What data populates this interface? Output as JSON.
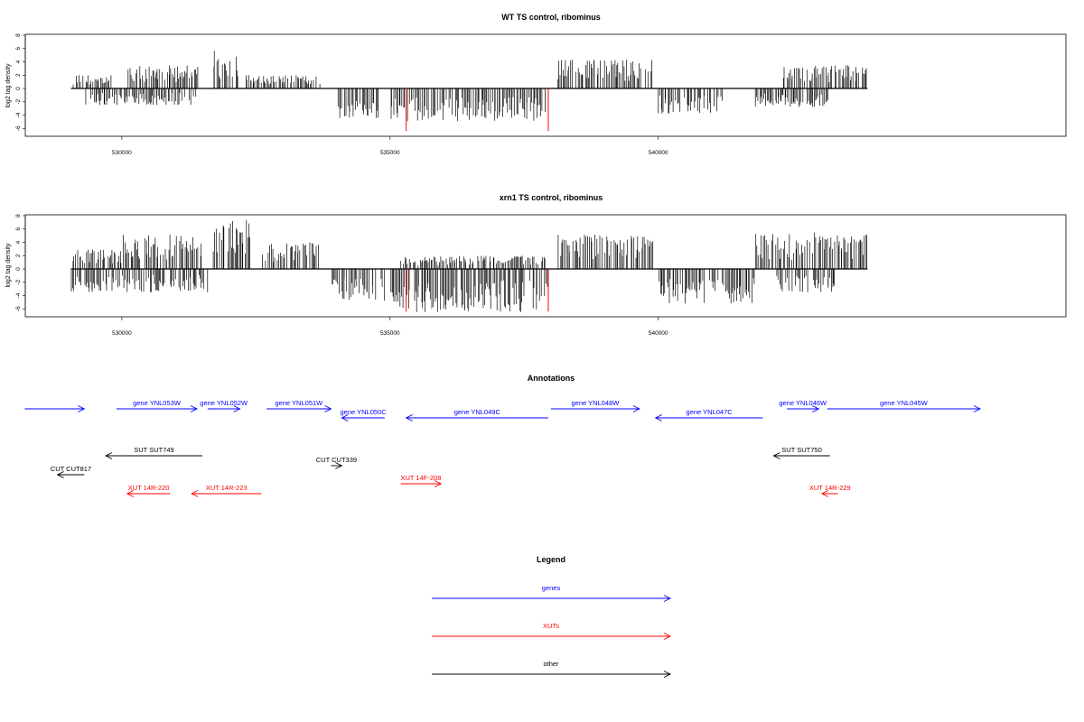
{
  "colors": {
    "gene": "#0000ff",
    "xut": "#ff0000",
    "other": "#000000",
    "marker": "#ff0000",
    "bars": "#000000"
  },
  "chart_data": [
    {
      "type": "bar",
      "title": "WT TS control, ribominus",
      "ylabel": "log2 tag density",
      "xlim": [
        528200,
        547600
      ],
      "ylim": [
        -6.5,
        8
      ],
      "yticks": [
        -6,
        -4,
        -2,
        0,
        2,
        4,
        6,
        8
      ],
      "xticks": [
        530000,
        535000,
        540000
      ],
      "xtick_labels": [
        "530000",
        "535000",
        "540000"
      ],
      "red_markers": [
        535300,
        537950
      ],
      "series": [
        {
          "strand": "+",
          "segments": [
            {
              "x0": 529050,
              "x1": 529800,
              "amp": 2.0
            },
            {
              "x0": 530100,
              "x1": 531500,
              "amp": 3.5
            },
            {
              "x0": 531700,
              "x1": 532200,
              "amp": 5.8
            },
            {
              "x0": 532300,
              "x1": 533700,
              "amp": 2.0
            },
            {
              "x0": 538100,
              "x1": 539900,
              "amp": 4.4
            },
            {
              "x0": 542300,
              "x1": 543900,
              "amp": 3.5
            }
          ]
        },
        {
          "strand": "-",
          "segments": [
            {
              "x0": 529300,
              "x1": 531400,
              "amp": 2.5
            },
            {
              "x0": 534000,
              "x1": 534800,
              "amp": 4.5
            },
            {
              "x0": 535000,
              "x1": 537900,
              "amp": 5.0
            },
            {
              "x0": 540000,
              "x1": 541200,
              "amp": 3.8
            },
            {
              "x0": 541800,
              "x1": 543200,
              "amp": 2.8
            }
          ]
        }
      ]
    },
    {
      "type": "bar",
      "title": "xrn1 TS control, ribominus",
      "ylabel": "log2 tag density",
      "xlim": [
        528200,
        547600
      ],
      "ylim": [
        -6.5,
        8
      ],
      "yticks": [
        -6,
        -4,
        -2,
        0,
        2,
        4,
        6,
        8
      ],
      "xticks": [
        530000,
        535000,
        540000
      ],
      "xtick_labels": [
        "530000",
        "535000",
        "540000"
      ],
      "red_markers": [
        535300,
        537950
      ],
      "series": [
        {
          "strand": "+",
          "segments": [
            {
              "x0": 529050,
              "x1": 530000,
              "amp": 3.0
            },
            {
              "x0": 530000,
              "x1": 531500,
              "amp": 5.2
            },
            {
              "x0": 531700,
              "x1": 532400,
              "amp": 7.5
            },
            {
              "x0": 532600,
              "x1": 533700,
              "amp": 4.0
            },
            {
              "x0": 535200,
              "x1": 537900,
              "amp": 2.0
            },
            {
              "x0": 538100,
              "x1": 539900,
              "amp": 5.2
            },
            {
              "x0": 541800,
              "x1": 543900,
              "amp": 5.5
            }
          ]
        },
        {
          "strand": "-",
          "segments": [
            {
              "x0": 529050,
              "x1": 531600,
              "amp": 3.5
            },
            {
              "x0": 533900,
              "x1": 534900,
              "amp": 5.0
            },
            {
              "x0": 535000,
              "x1": 538000,
              "amp": 6.5
            },
            {
              "x0": 540000,
              "x1": 541800,
              "amp": 5.2
            },
            {
              "x0": 542200,
              "x1": 543300,
              "amp": 3.5
            }
          ]
        }
      ]
    }
  ],
  "annotations": {
    "title": "Annotations",
    "genes": [
      {
        "label": "",
        "x0": 528190,
        "x1": 529300,
        "dir": "+"
      },
      {
        "label": "gene YNL053W",
        "x0": 529900,
        "x1": 531400,
        "dir": "+"
      },
      {
        "label": "gene YNL052W",
        "x0": 531600,
        "x1": 532200,
        "dir": "+"
      },
      {
        "label": "gene YNL051W",
        "x0": 532700,
        "x1": 533900,
        "dir": "+"
      },
      {
        "label": "gene YNL050C",
        "x0": 534100,
        "x1": 534900,
        "dir": "-"
      },
      {
        "label": "gene YNL049C",
        "x0": 535300,
        "x1": 537950,
        "dir": "-"
      },
      {
        "label": "gene YNL048W",
        "x0": 538000,
        "x1": 539650,
        "dir": "+"
      },
      {
        "label": "gene YNL047C",
        "x0": 539950,
        "x1": 541950,
        "dir": "-"
      },
      {
        "label": "gene YNL046W",
        "x0": 542400,
        "x1": 542990,
        "dir": "+"
      },
      {
        "label": "gene YNL045W",
        "x0": 543150,
        "x1": 546000,
        "dir": "+"
      }
    ],
    "other": [
      {
        "label": "SUT SUT749",
        "x0": 529700,
        "x1": 531500,
        "dir": "-"
      },
      {
        "label": "CUT CUT817",
        "x0": 528800,
        "x1": 529300,
        "dir": "-"
      },
      {
        "label": "CUT CUT339",
        "x0": 533900,
        "x1": 534100,
        "dir": "+"
      },
      {
        "label": "SUT SUT750",
        "x0": 542150,
        "x1": 543200,
        "dir": "-"
      }
    ],
    "xuts": [
      {
        "label": "XUT 14R-220",
        "x0": 530100,
        "x1": 530900,
        "dir": "-"
      },
      {
        "label": "XUT 14R-223",
        "x0": 531300,
        "x1": 532600,
        "dir": "-"
      },
      {
        "label": "XUT 14F-208",
        "x0": 535200,
        "x1": 535950,
        "dir": "+"
      },
      {
        "label": "XUT 14R-229",
        "x0": 543050,
        "x1": 543350,
        "dir": "-"
      }
    ]
  },
  "legend": {
    "title": "Legend",
    "items": [
      {
        "label": "genes",
        "kind": "gene"
      },
      {
        "label": "XUTs",
        "kind": "xut"
      },
      {
        "label": "other",
        "kind": "other"
      }
    ]
  }
}
